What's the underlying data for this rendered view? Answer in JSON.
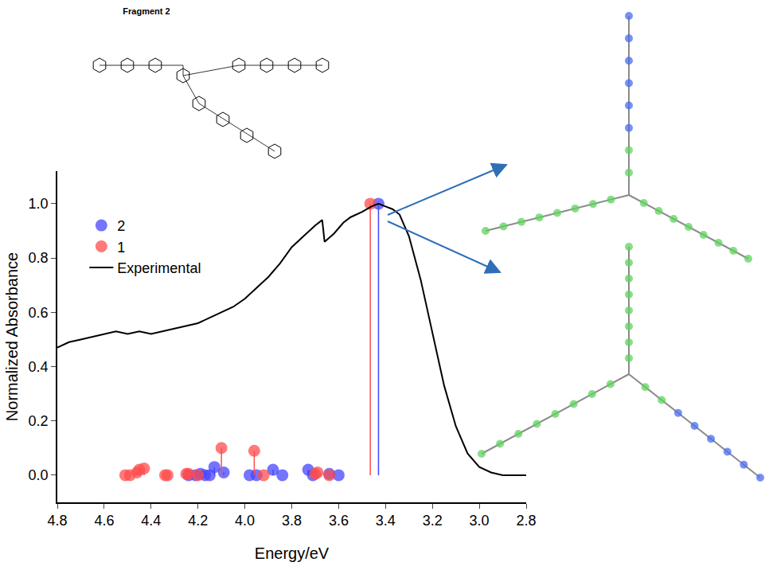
{
  "chart_data": {
    "type": "line",
    "x_label": "Energy/eV",
    "y_label": "Normalized Absorbance",
    "xlim": [
      4.8,
      2.8
    ],
    "xticks": [
      4.8,
      4.6,
      4.4,
      4.2,
      {
        "value": 4,
        "label": "4.0"
      },
      3.8,
      3.6,
      3.4,
      3.2,
      {
        "value": 3,
        "label": "3.0"
      },
      2.8
    ],
    "ylim": [
      -0.1,
      1.12
    ],
    "yticks": [
      {
        "value": 0,
        "label": "0.0"
      },
      0.2,
      0.4,
      0.6,
      0.8,
      {
        "value": 1,
        "label": "1.0"
      }
    ],
    "grid": false,
    "legend": "upper left",
    "series": [
      {
        "name": "2",
        "type": "stem",
        "color": "#4646ff",
        "marker": "circle",
        "x": [
          3.43,
          4.24,
          4.21,
          4.19,
          4.17,
          4.15,
          4.13,
          4.09,
          3.98,
          3.95,
          3.88,
          3.84,
          3.73,
          3.71,
          3.64,
          3.6
        ],
        "values": [
          1.0,
          0,
          0,
          0.005,
          0,
          0,
          0.03,
          0.01,
          0,
          0,
          0.02,
          0,
          0.02,
          0,
          0.005,
          0
        ]
      },
      {
        "name": "1",
        "type": "stem",
        "color": "#ff4c4c",
        "marker": "circle",
        "x": [
          3.465,
          4.51,
          4.49,
          4.46,
          4.45,
          4.43,
          4.34,
          4.33,
          4.25,
          4.24,
          4.2,
          4.1,
          3.96,
          3.92,
          3.7,
          3.69,
          3.64
        ],
        "values": [
          1.0,
          0,
          0,
          0.01,
          0.02,
          0.025,
          0,
          0,
          0.005,
          0.005,
          0,
          0.1,
          0.09,
          0,
          0.005,
          0.01,
          0
        ]
      },
      {
        "name": "Experimental",
        "type": "line",
        "color": "#000000",
        "line_style": "solid",
        "x": [
          4.8,
          4.75,
          4.7,
          4.65,
          4.6,
          4.55,
          4.5,
          4.45,
          4.4,
          4.35,
          4.3,
          4.25,
          4.2,
          4.15,
          4.1,
          4.05,
          4.0,
          3.95,
          3.9,
          3.85,
          3.8,
          3.75,
          3.7,
          3.67,
          3.66,
          3.62,
          3.58,
          3.55,
          3.5,
          3.46,
          3.43,
          3.4,
          3.37,
          3.34,
          3.3,
          3.25,
          3.2,
          3.15,
          3.1,
          3.05,
          3.0,
          2.95,
          2.9,
          2.85,
          2.8
        ],
        "values": [
          0.47,
          0.49,
          0.5,
          0.51,
          0.52,
          0.53,
          0.52,
          0.53,
          0.52,
          0.53,
          0.54,
          0.55,
          0.56,
          0.58,
          0.6,
          0.62,
          0.65,
          0.69,
          0.73,
          0.78,
          0.84,
          0.88,
          0.92,
          0.94,
          0.86,
          0.89,
          0.93,
          0.95,
          0.97,
          0.99,
          1.0,
          0.99,
          0.98,
          0.96,
          0.88,
          0.72,
          0.52,
          0.33,
          0.18,
          0.08,
          0.03,
          0.01,
          0.0,
          0.0,
          0.0
        ]
      }
    ]
  },
  "inset": {
    "title": "Fragment 2"
  }
}
